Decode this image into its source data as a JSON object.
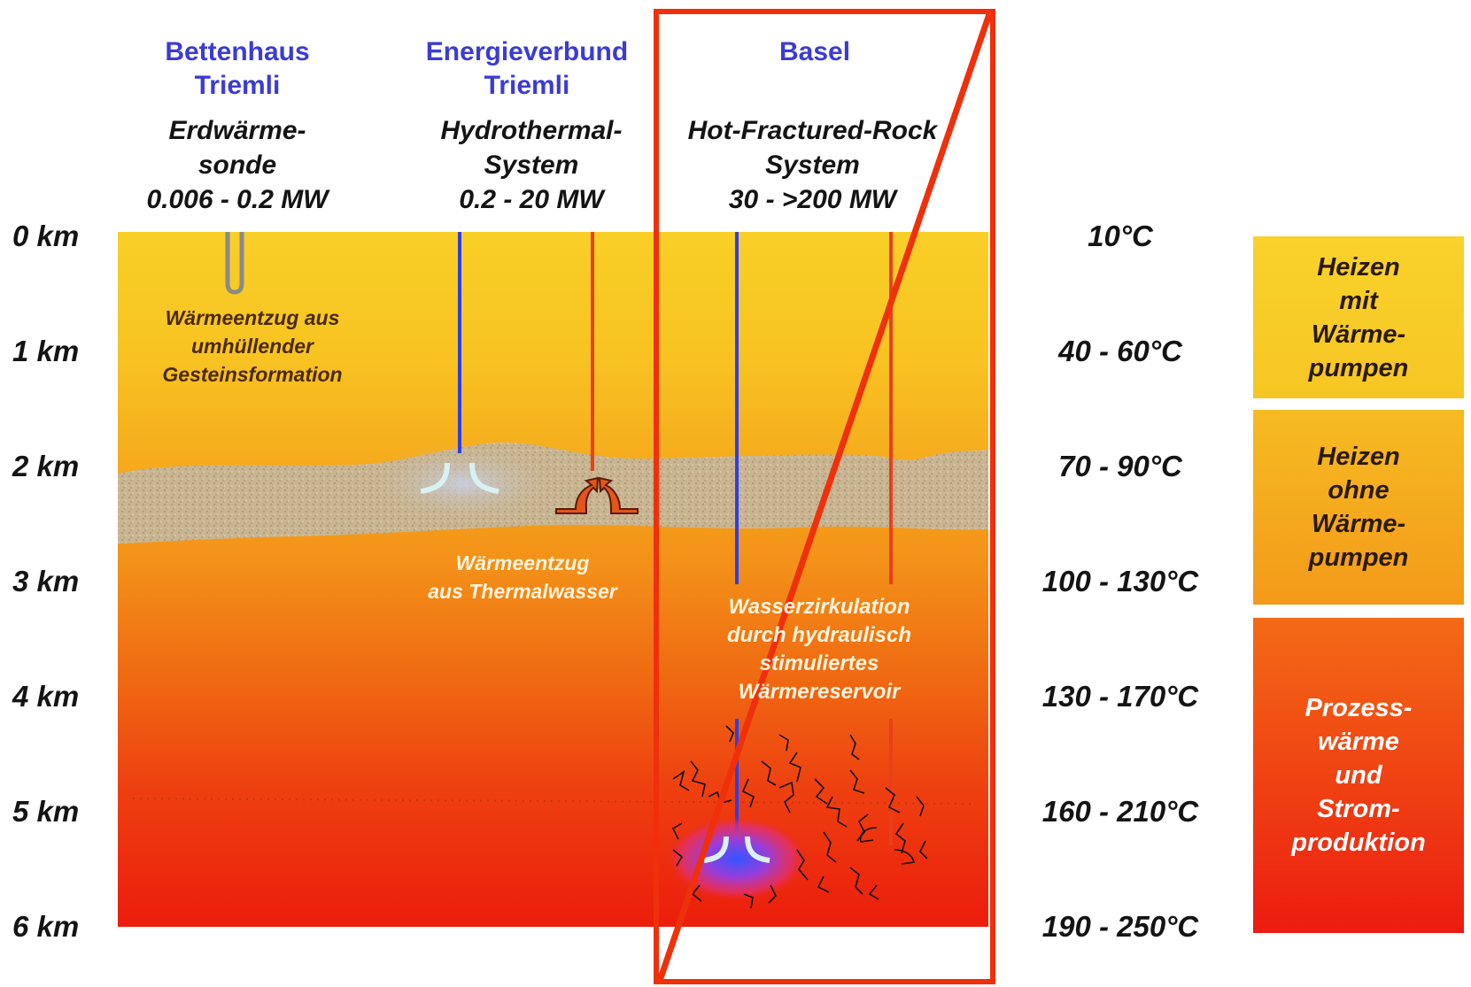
{
  "columns": [
    {
      "site": "Bettenhaus\nTriemli",
      "system": "Erdwärme-\nsonde\n0.006 - 0.2 MW"
    },
    {
      "site": "Energieverbund\nTriemli",
      "system": "Hydrothermal-\nSystem\n0.2 - 20 MW"
    },
    {
      "site": "Basel",
      "system": "Hot-Fractured-Rock\nSystem\n30 - >200 MW"
    }
  ],
  "depths": [
    "0 km",
    "1 km",
    "2 km",
    "3 km",
    "4 km",
    "5 km",
    "6 km"
  ],
  "temperatures": [
    "10°C",
    "40 - 60°C",
    "70 - 90°C",
    "100 - 130°C",
    "130 - 170°C",
    "160 - 210°C",
    "190 - 250°C"
  ],
  "annotations": {
    "probe": "Wärmeentzug aus\numhüllender\nGesteinsformation",
    "thermal": "Wärmeentzug\naus Thermalwasser",
    "hfr": "Wasserzirkulation\ndurch hydraulisch\nstimuliertes\nWärmereservoir"
  },
  "uses": [
    {
      "label": "Heizen\nmit\nWärme-\npumpen",
      "color": "#f8cf2a"
    },
    {
      "label": "Heizen\nohne\nWärme-\npumpen",
      "color": "#f6b01c"
    },
    {
      "label": "Prozess-\nwärme\nund\nStrom-\nproduktion",
      "color": "#f03a14"
    }
  ],
  "colors": {
    "site_text": "#3b3bd6",
    "highlight": "#f0300a",
    "injection_pipe": "#2b3fe8",
    "production_pipe": "#e8401a"
  }
}
